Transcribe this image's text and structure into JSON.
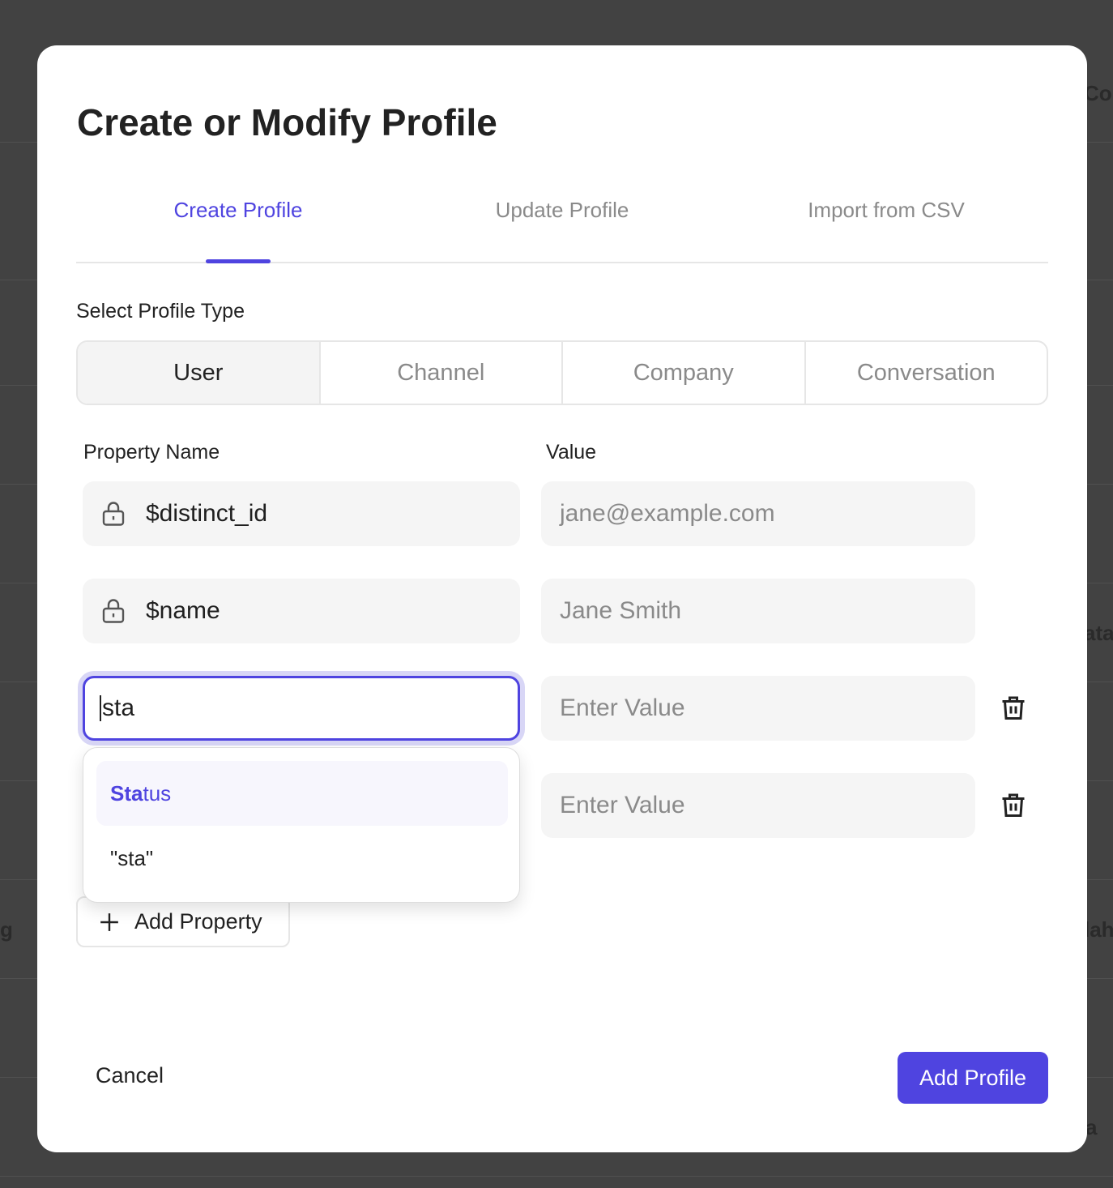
{
  "background": {
    "fragments": [
      "Col",
      "ata",
      "lah",
      "a",
      "g"
    ]
  },
  "modal": {
    "title": "Create or Modify Profile",
    "tabs": [
      {
        "label": "Create Profile",
        "active": true
      },
      {
        "label": "Update Profile"
      },
      {
        "label": "Import from CSV"
      }
    ],
    "profile_type_label": "Select Profile Type",
    "profile_types": [
      {
        "label": "User",
        "selected": true
      },
      {
        "label": "Channel"
      },
      {
        "label": "Company"
      },
      {
        "label": "Conversation"
      }
    ],
    "columns": {
      "name": "Property Name",
      "value": "Value"
    },
    "rows": [
      {
        "name": "$distinct_id",
        "locked": true,
        "value_placeholder": "jane@example.com"
      },
      {
        "name": "$name",
        "locked": true,
        "value_placeholder": "Jane Smith"
      },
      {
        "name": "sta",
        "value_placeholder": "Enter Value"
      },
      {
        "name": "",
        "value_placeholder": "Enter Value"
      }
    ],
    "autocomplete": {
      "match_bold": "Sta",
      "match_rest": "tus",
      "literal": "\"sta\""
    },
    "add_property": "Add Property",
    "cancel": "Cancel",
    "submit": "Add Profile",
    "accent": "#4f44e0"
  }
}
